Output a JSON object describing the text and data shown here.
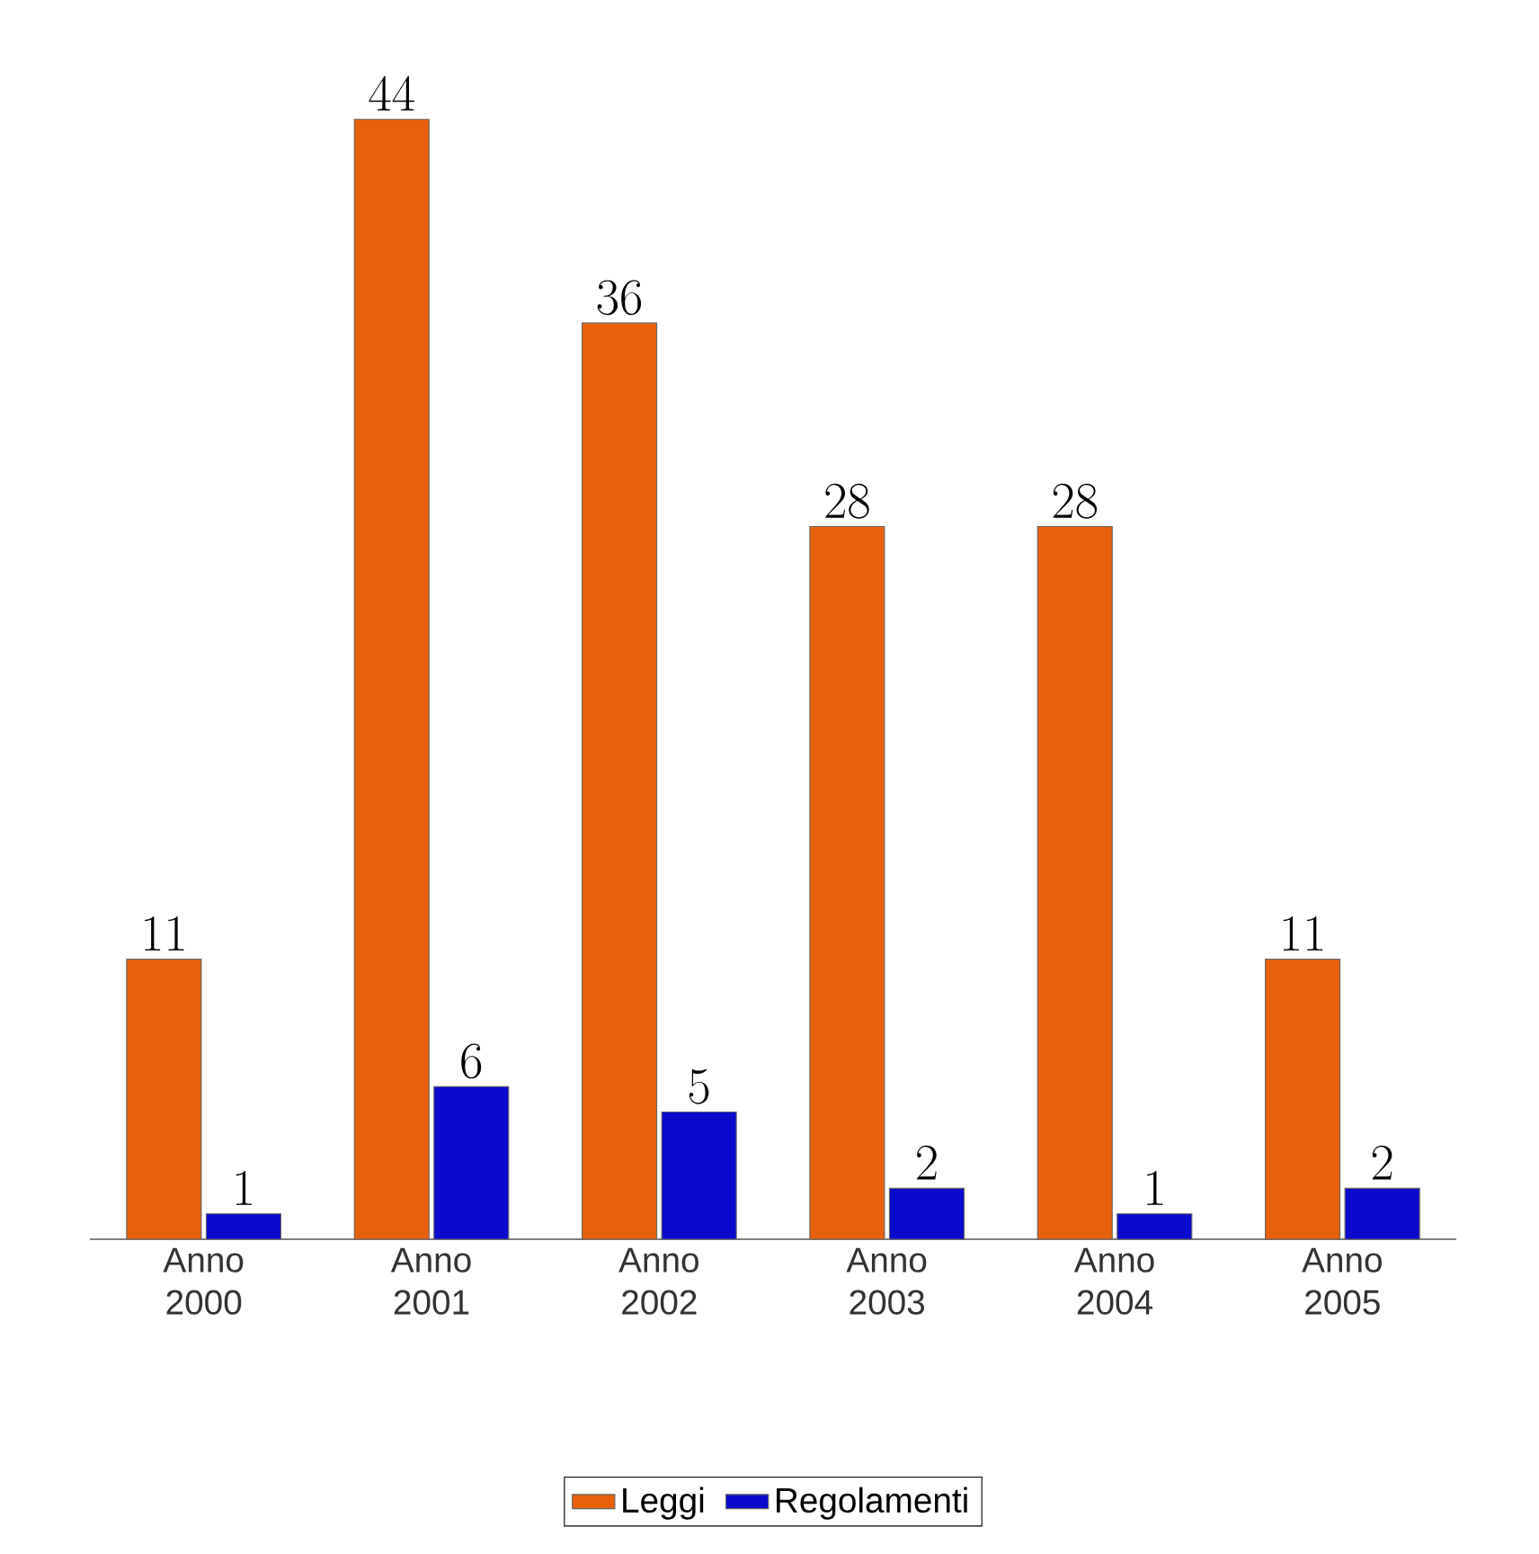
{
  "chart_data": {
    "type": "bar",
    "categories": [
      "Anno 2000",
      "Anno 2001",
      "Anno 2002",
      "Anno 2003",
      "Anno 2004",
      "Anno 2005"
    ],
    "series": [
      {
        "name": "Leggi",
        "color": "#e8600c",
        "values": [
          11,
          44,
          36,
          28,
          28,
          11
        ]
      },
      {
        "name": "Regolamenti",
        "color": "#0a0acc",
        "values": [
          1,
          6,
          5,
          2,
          1,
          2
        ]
      }
    ],
    "data_labels": true,
    "legend": "bottom"
  }
}
